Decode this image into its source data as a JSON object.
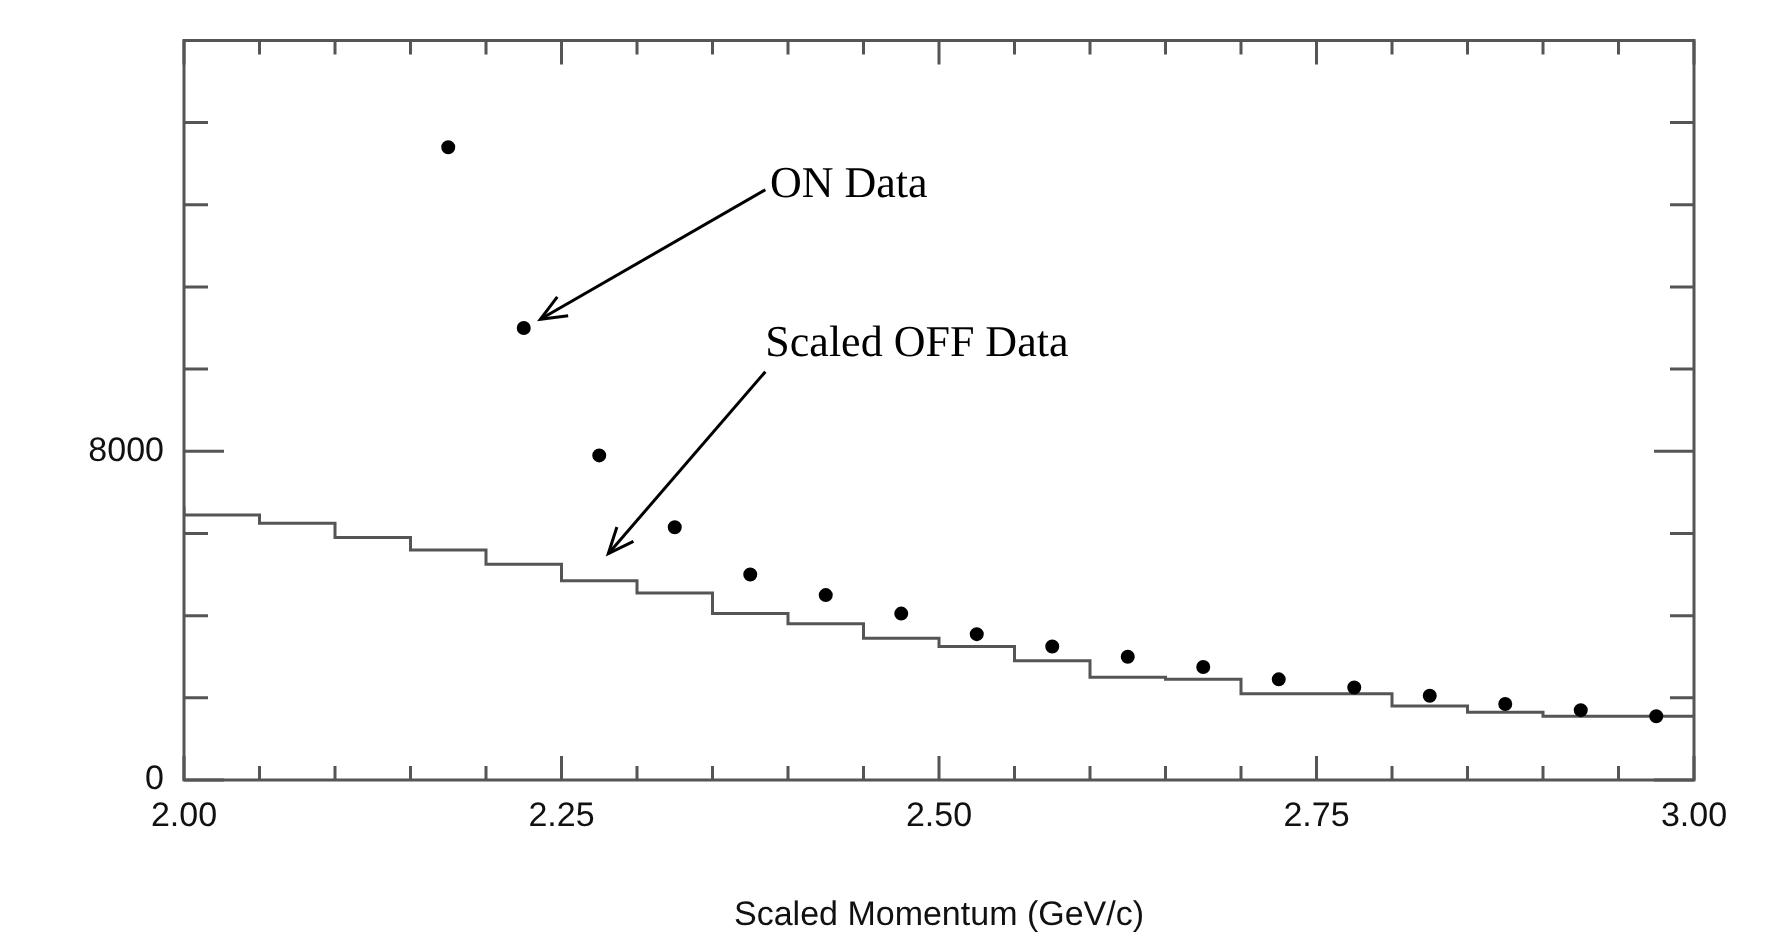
{
  "chart_data": {
    "type": "scatter",
    "xlabel": "Scaled Momentum (GeV/c)",
    "xlim": [
      2.0,
      3.0
    ],
    "xticks": [
      {
        "value": 2.0,
        "label": "2.00"
      },
      {
        "value": 2.05,
        "label": null
      },
      {
        "value": 2.1,
        "label": null
      },
      {
        "value": 2.15,
        "label": null
      },
      {
        "value": 2.2,
        "label": null
      },
      {
        "value": 2.25,
        "label": "2.25"
      },
      {
        "value": 2.3,
        "label": null
      },
      {
        "value": 2.35,
        "label": null
      },
      {
        "value": 2.4,
        "label": null
      },
      {
        "value": 2.45,
        "label": null
      },
      {
        "value": 2.5,
        "label": "2.50"
      },
      {
        "value": 2.55,
        "label": null
      },
      {
        "value": 2.6,
        "label": null
      },
      {
        "value": 2.65,
        "label": null
      },
      {
        "value": 2.7,
        "label": null
      },
      {
        "value": 2.75,
        "label": "2.75"
      },
      {
        "value": 2.8,
        "label": null
      },
      {
        "value": 2.85,
        "label": null
      },
      {
        "value": 2.9,
        "label": null
      },
      {
        "value": 2.95,
        "label": null
      },
      {
        "value": 3.0,
        "label": "3.00"
      }
    ],
    "ylim": [
      0,
      18000
    ],
    "yticks": [
      0,
      {
        "value": 2000,
        "label": null
      },
      {
        "value": 4000,
        "label": null
      },
      {
        "value": 6000,
        "label": null
      },
      8000,
      {
        "value": 10000,
        "label": null
      },
      {
        "value": 12000,
        "label": null
      },
      {
        "value": 14000,
        "label": null
      },
      {
        "value": 16000,
        "label": null
      }
    ],
    "series": [
      {
        "marker": "circle",
        "color": "#000000",
        "x": [
          2.175,
          2.225,
          2.275,
          2.325,
          2.375,
          2.425,
          2.475,
          2.525,
          2.575,
          2.625,
          2.675,
          2.725,
          2.775,
          2.825,
          2.875,
          2.925,
          2.975
        ],
        "values": [
          15400,
          11000,
          7900,
          6150,
          5000,
          4500,
          4050,
          3550,
          3250,
          3000,
          2750,
          2450,
          2250,
          2050,
          1850,
          1700,
          1550
        ]
      },
      {
        "type": "step",
        "marker": "none",
        "color": "#555555",
        "x": [
          2.0,
          2.05,
          2.1,
          2.15,
          2.2,
          2.25,
          2.3,
          2.35,
          2.4,
          2.45,
          2.5,
          2.55,
          2.6,
          2.65,
          2.7,
          2.75,
          2.8,
          2.85,
          2.9,
          2.95,
          3.0
        ],
        "values": [
          6650,
          6450,
          6250,
          5900,
          5600,
          5250,
          4850,
          4550,
          4050,
          3800,
          3450,
          3250,
          2900,
          2500,
          2450,
          2100,
          2100,
          1800,
          1650,
          1550,
          1550
        ]
      }
    ],
    "annotations": [
      "ON Data",
      "Scaled OFF Data"
    ]
  }
}
